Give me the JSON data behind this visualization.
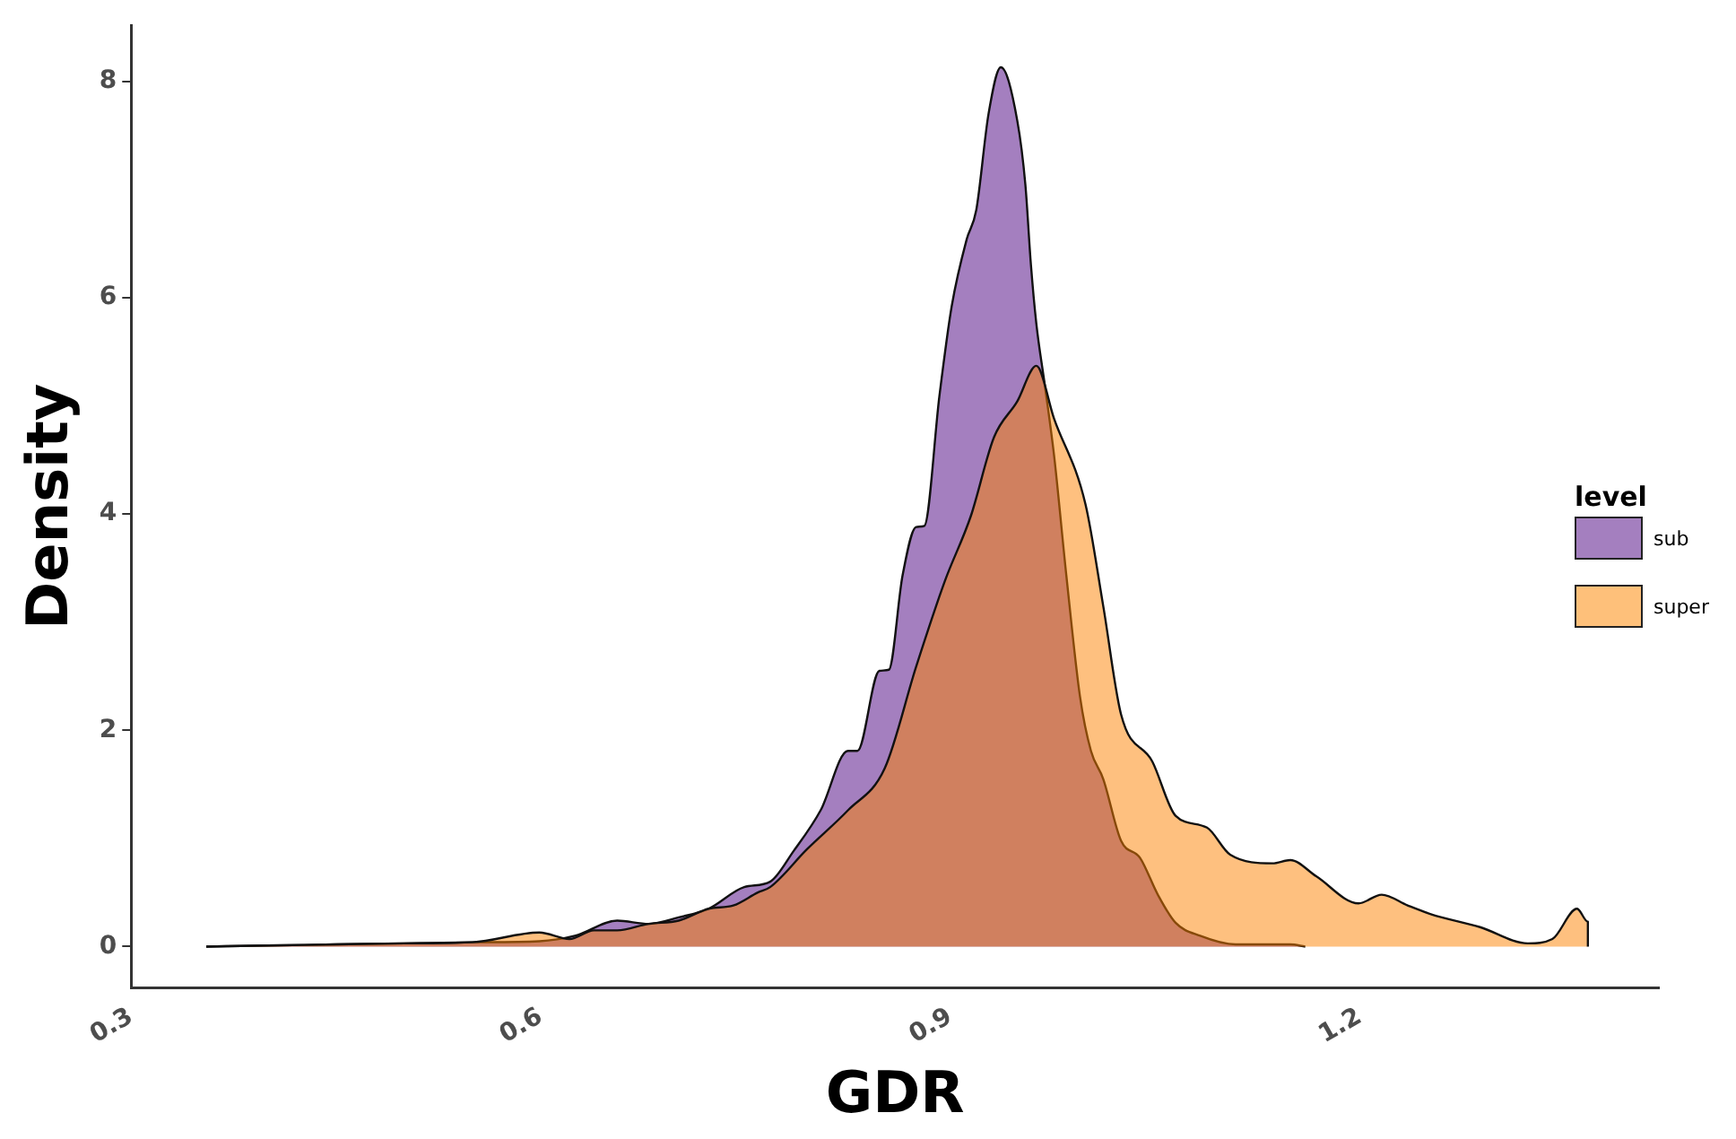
{
  "chart_data": {
    "type": "area",
    "xlabel": "GDR",
    "ylabel": "Density",
    "legend_title": "level",
    "legend": "right",
    "grid": false,
    "xlim": [
      0.3,
      1.419
    ],
    "ylim": [
      -0.38,
      8.52
    ],
    "xticks": [
      0.3,
      0.6,
      0.9,
      1.2
    ],
    "yticks": [
      0,
      2,
      4,
      6,
      8
    ],
    "series": [
      {
        "name": "sub",
        "color": "#a47fbf",
        "x": [
          0.355,
          0.4,
          0.45,
          0.5,
          0.55,
          0.599,
          0.625,
          0.656,
          0.679,
          0.701,
          0.723,
          0.749,
          0.768,
          0.785,
          0.805,
          0.825,
          0.832,
          0.848,
          0.855,
          0.865,
          0.875,
          0.881,
          0.892,
          0.901,
          0.912,
          0.919,
          0.928,
          0.937,
          0.949,
          0.955,
          0.959,
          0.963,
          0.969,
          0.976,
          0.985,
          0.995,
          1.003,
          1.012,
          1.025,
          1.039,
          1.052,
          1.065,
          1.083,
          1.109,
          1.149,
          1.16
        ],
        "values": [
          0,
          0.01,
          0.02,
          0.03,
          0.04,
          0.05,
          0.1,
          0.24,
          0.21,
          0.27,
          0.35,
          0.55,
          0.6,
          0.88,
          1.26,
          1.81,
          1.81,
          2.55,
          2.56,
          3.43,
          3.88,
          3.89,
          5.09,
          5.92,
          6.54,
          6.81,
          7.7,
          8.13,
          7.64,
          7.04,
          6.31,
          5.76,
          5.21,
          4.54,
          3.43,
          2.31,
          1.81,
          1.55,
          0.98,
          0.82,
          0.48,
          0.22,
          0.1,
          0.02,
          0.02,
          0
        ]
      },
      {
        "name": "super",
        "color": "#fec07a",
        "x": [
          0.355,
          0.4,
          0.45,
          0.5,
          0.55,
          0.599,
          0.621,
          0.639,
          0.656,
          0.679,
          0.701,
          0.723,
          0.741,
          0.759,
          0.768,
          0.795,
          0.825,
          0.852,
          0.875,
          0.896,
          0.915,
          0.932,
          0.949,
          0.963,
          0.976,
          0.999,
          1.012,
          1.025,
          1.048,
          1.065,
          1.088,
          1.105,
          1.136,
          1.149,
          1.168,
          1.199,
          1.216,
          1.235,
          1.252,
          1.288,
          1.323,
          1.341,
          1.359,
          1.367,
          1.367
        ],
        "values": [
          0,
          0.01,
          0.02,
          0.03,
          0.04,
          0.13,
          0.07,
          0.15,
          0.15,
          0.21,
          0.24,
          0.35,
          0.38,
          0.5,
          0.55,
          0.9,
          1.26,
          1.65,
          2.59,
          3.38,
          3.98,
          4.71,
          5.04,
          5.37,
          4.88,
          4.09,
          3.15,
          2.15,
          1.71,
          1.21,
          1.1,
          0.85,
          0.77,
          0.8,
          0.65,
          0.4,
          0.48,
          0.38,
          0.3,
          0.18,
          0.03,
          0.07,
          0.35,
          0.23,
          0
        ]
      }
    ]
  }
}
